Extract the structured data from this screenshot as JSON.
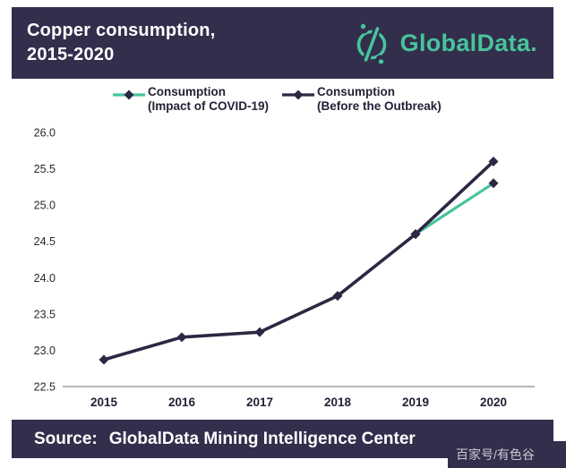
{
  "header": {
    "title_line1": "Copper consumption,",
    "title_line2": "2015-2020",
    "brand": "GlobalData."
  },
  "legend": [
    {
      "line1": "Consumption",
      "line2": "(Impact of COVID-19)",
      "color": "#48c39c"
    },
    {
      "line1": "Consumption",
      "line2": "(Before the Outbreak)",
      "color": "#2b2843"
    }
  ],
  "footer": {
    "source_label": "Source:",
    "source_text": "GlobalData Mining Intelligence Center"
  },
  "watermark": "百家号/有色谷",
  "colors": {
    "panel_bg": "#322e4c",
    "accent_green": "#48c39c",
    "line_dark": "#2b2843",
    "axis_gray": "#9e9da2",
    "marker": "#2b2843"
  },
  "chart_data": {
    "type": "line",
    "title": "Copper consumption, 2015-2020",
    "x": [
      "2015",
      "2016",
      "2017",
      "2018",
      "2019",
      "2020"
    ],
    "series": [
      {
        "name": "Consumption (Impact of COVID-19)",
        "color": "#48c39c",
        "width": 3.2,
        "values": [
          null,
          null,
          null,
          null,
          24.6,
          25.3
        ]
      },
      {
        "name": "Consumption (Before the Outbreak)",
        "color": "#2b2843",
        "width": 3.6,
        "values": [
          22.87,
          23.18,
          23.25,
          23.75,
          24.6,
          25.6
        ]
      }
    ],
    "marker": "diamond",
    "marker_color": "#2b2843",
    "ylim": [
      22.5,
      26.0
    ],
    "yticks": [
      "26.0",
      "25.5",
      "25.0",
      "24.5",
      "24.0",
      "23.5",
      "23.0",
      "22.5"
    ],
    "grid": false,
    "legend_position": "top",
    "xlabel": "",
    "ylabel": ""
  }
}
